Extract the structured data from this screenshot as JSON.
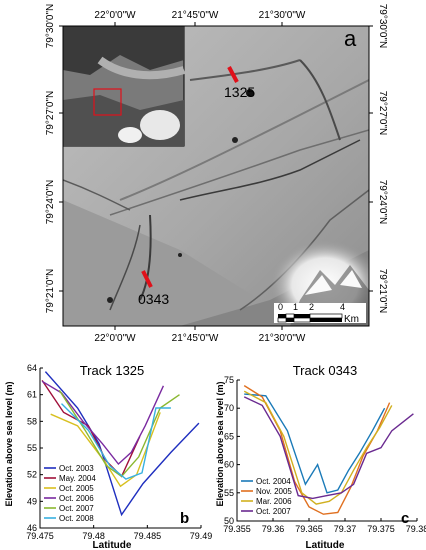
{
  "map": {
    "panel_label": "a",
    "top_ticks": [
      "22°0'0\"W",
      "21°45'0\"W",
      "21°30'0\"W"
    ],
    "bottom_ticks": [
      "22°0'0\"W",
      "21°45'0\"W",
      "21°30'0\"W"
    ],
    "left_ticks": [
      "79°30'0\"N",
      "79°27'0\"N",
      "79°24'0\"N",
      "79°21'0\"N"
    ],
    "right_ticks": [
      "79°30'0\"N",
      "79°27'0\"N",
      "79°24'0\"N",
      "79°21'0\"N"
    ],
    "track_labels": [
      "1325",
      "0343"
    ],
    "track_color": "#e0101a",
    "scale_bar": {
      "ticks": [
        "0",
        "1",
        "2",
        "4"
      ],
      "unit": "Km"
    }
  },
  "chart_data": [
    {
      "type": "line",
      "panel_label": "b",
      "title": "Track 1325",
      "xlabel": "Latitude",
      "ylabel": "Elevation above sea level (m)",
      "xlim": [
        79.475,
        79.49
      ],
      "ylim": [
        46,
        64
      ],
      "xticks": [
        "79.475",
        "79.48",
        "79.485",
        "79.49"
      ],
      "yticks": [
        "46",
        "49",
        "52",
        "55",
        "58",
        "61",
        "64"
      ],
      "legend_position": "bottom-left",
      "series": [
        {
          "name": "Oct. 2003",
          "color": "#1f2fbf",
          "x": [
            79.4755,
            79.4785,
            79.4805,
            79.4826,
            79.4846,
            79.4872,
            79.4898
          ],
          "y": [
            63.6,
            59.5,
            55.5,
            47.5,
            51.0,
            54.5,
            57.8
          ]
        },
        {
          "name": "May. 2004",
          "color": "#a0103a",
          "x": [
            79.4752,
            79.4772,
            79.4795,
            79.4812,
            79.4826,
            79.4843
          ],
          "y": [
            62.6,
            59.0,
            57.5,
            53.5,
            51.8,
            56.3
          ]
        },
        {
          "name": "Oct. 2005",
          "color": "#d8c020",
          "x": [
            79.476,
            79.4785,
            79.481,
            79.4825,
            79.484,
            79.4862
          ],
          "y": [
            58.8,
            57.5,
            53.5,
            50.7,
            52.0,
            59.0
          ]
        },
        {
          "name": "Oct. 2006",
          "color": "#7a2aa0",
          "x": [
            79.4752,
            79.477,
            79.479,
            79.4808,
            79.4823,
            79.4835,
            79.4848,
            79.4865
          ],
          "y": [
            62.5,
            61.2,
            58.0,
            55.5,
            53.2,
            54.5,
            57.5,
            62.0
          ]
        },
        {
          "name": "Oct. 2007",
          "color": "#8ab830",
          "x": [
            79.4768,
            79.4792,
            79.4812,
            79.4826,
            79.4842,
            79.4862,
            79.488
          ],
          "y": [
            61.5,
            57.0,
            53.0,
            51.8,
            54.0,
            59.5,
            61.0
          ]
        },
        {
          "name": "Oct. 2008",
          "color": "#38b0e0",
          "x": [
            79.477,
            79.4795,
            79.4815,
            79.483,
            79.4845,
            79.4858,
            79.4872
          ],
          "y": [
            60.0,
            57.0,
            53.0,
            51.5,
            52.2,
            59.5,
            59.5
          ]
        }
      ]
    },
    {
      "type": "line",
      "panel_label": "c",
      "title": "Track 0343",
      "xlabel": "Latitude",
      "ylabel": "Elevation above sea level (m)",
      "xlim": [
        79.355,
        79.38
      ],
      "ylim": [
        50,
        75
      ],
      "xticks": [
        "79.355",
        "79.36",
        "79.365",
        "79.37",
        "79.375",
        "79.38"
      ],
      "yticks": [
        "50",
        "55",
        "60",
        "65",
        "70",
        "75"
      ],
      "legend_position": "bottom-left",
      "series": [
        {
          "name": "Oct. 2004",
          "color": "#1a7ab8",
          "x": [
            79.356,
            79.359,
            79.362,
            79.3645,
            79.3662,
            79.3675,
            79.369,
            79.3705,
            79.372,
            79.3738,
            79.3755
          ],
          "y": [
            72.5,
            72.2,
            66.0,
            56.5,
            60.0,
            55.0,
            55.5,
            59.0,
            62.0,
            66.0,
            70.0
          ]
        },
        {
          "name": "Nov. 2005",
          "color": "#e07020",
          "x": [
            79.356,
            79.3585,
            79.361,
            79.363,
            79.365,
            79.367,
            79.369,
            79.3708,
            79.3725,
            79.3745,
            79.3762
          ],
          "y": [
            74.0,
            72.0,
            66.0,
            57.0,
            52.5,
            51.2,
            51.5,
            56.0,
            61.5,
            66.0,
            71.0
          ]
        },
        {
          "name": "Mar. 2006",
          "color": "#d0b020",
          "x": [
            79.356,
            79.359,
            79.3615,
            79.364,
            79.366,
            79.3678,
            79.3695,
            79.3712,
            79.373,
            79.3748,
            79.3765
          ],
          "y": [
            73.0,
            71.0,
            65.0,
            55.0,
            53.0,
            53.5,
            55.0,
            59.0,
            63.0,
            66.5,
            70.5
          ]
        },
        {
          "name": "Oct. 2007",
          "color": "#6a2a90",
          "x": [
            79.356,
            79.3585,
            79.361,
            79.3635,
            79.3655,
            79.3675,
            79.3695,
            79.3712,
            79.373,
            79.375,
            79.3765,
            79.3795
          ],
          "y": [
            72.0,
            70.5,
            65.0,
            54.5,
            54.0,
            54.5,
            55.0,
            56.5,
            62.0,
            63.0,
            66.0,
            69.0
          ]
        }
      ]
    }
  ]
}
